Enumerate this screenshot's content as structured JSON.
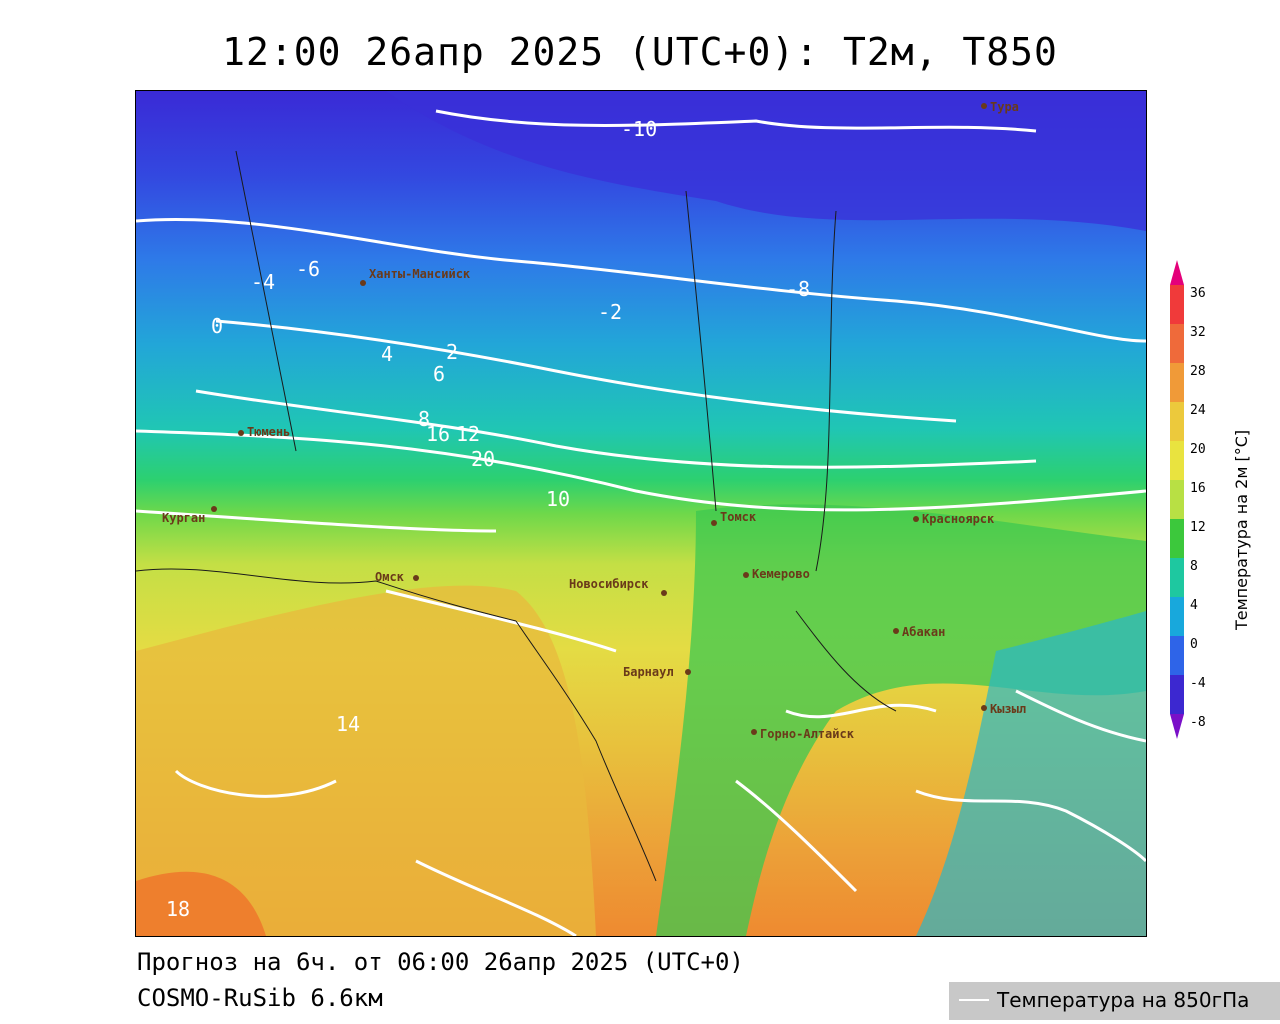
{
  "title": "12:00 26апр 2025 (UTC+0): T2м, T850",
  "footer": {
    "forecast": "Прогноз на 6ч. от 06:00 26апр 2025 (UTC+0)",
    "model": "COSMO-RuSib 6.6км"
  },
  "legend": {
    "label": "Температура на 850гПа"
  },
  "colorbar": {
    "title": "Температура на 2м [°C]",
    "ticks": [
      "36",
      "32",
      "28",
      "24",
      "20",
      "16",
      "12",
      "8",
      "4",
      "0",
      "-4",
      "-8"
    ],
    "colors": [
      "#e4007a",
      "#f03a3a",
      "#ef6a3a",
      "#f09a38",
      "#ecc93c",
      "#e9e33f",
      "#b8e044",
      "#3cc83c",
      "#1ec8a0",
      "#18a8dc",
      "#2e64e8",
      "#3c28d0",
      "#7a10c8"
    ]
  },
  "cities": [
    {
      "name": "Ханты-Мансийск"
    },
    {
      "name": "Тюмень"
    },
    {
      "name": "Курган"
    },
    {
      "name": "Омск"
    },
    {
      "name": "Новосибирск"
    },
    {
      "name": "Томск"
    },
    {
      "name": "Кемерово"
    },
    {
      "name": "Барнаул"
    },
    {
      "name": "Горно-Алтайск"
    },
    {
      "name": "Абакан"
    },
    {
      "name": "Красноярск"
    },
    {
      "name": "Кызыл"
    },
    {
      "name": "Тура"
    }
  ],
  "isotherm_labels_850": [
    "-10",
    "-8",
    "-6",
    "-4",
    "-2",
    "0",
    "2",
    "4",
    "6",
    "8",
    "10",
    "12",
    "14",
    "16",
    "18",
    "20"
  ]
}
